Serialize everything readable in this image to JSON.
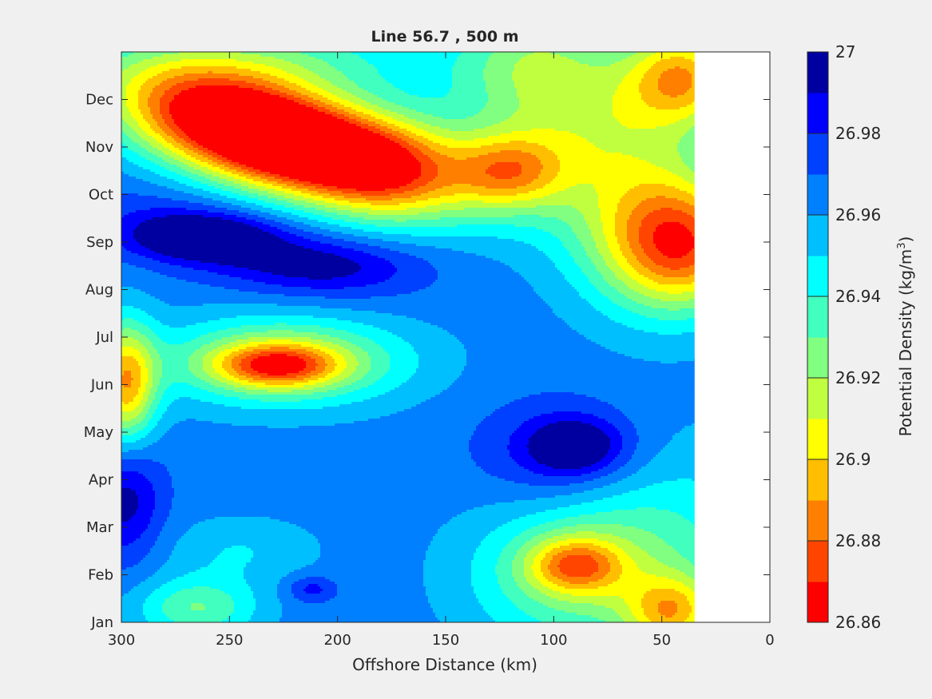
{
  "chart_data": {
    "type": "heatmap",
    "subtype": "filled-contour",
    "title": "Line 56.7 , 500 m",
    "xlabel": "Offshore Distance (km)",
    "xlim": [
      0,
      300
    ],
    "x_reversed": true,
    "x_ticks": [
      300,
      250,
      200,
      150,
      100,
      50,
      0
    ],
    "x_tick_labels": [
      "300",
      "250",
      "200",
      "150",
      "100",
      "50",
      "0"
    ],
    "data_extent_x": [
      35,
      300
    ],
    "ylim": [
      0,
      12
    ],
    "y_ticks": [
      0,
      1,
      2,
      3,
      4,
      5,
      6,
      7,
      8,
      9,
      10,
      11
    ],
    "y_tick_labels": [
      "Jan",
      "Feb",
      "Mar",
      "Apr",
      "May",
      "Jun",
      "Jul",
      "Aug",
      "Sep",
      "Oct",
      "Nov",
      "Dec"
    ],
    "colorbar": {
      "label": "Potential Density (kg/m",
      "label_superscript": "3",
      "label_suffix": ")",
      "range": [
        26.86,
        27
      ],
      "ticks": [
        26.86,
        26.88,
        26.9,
        26.92,
        26.94,
        26.96,
        26.98,
        27
      ],
      "tick_labels": [
        "26.86",
        "26.88",
        "26.9",
        "26.92",
        "26.94",
        "26.96",
        "26.98",
        "27"
      ],
      "levels": [
        26.86,
        26.87,
        26.88,
        26.89,
        26.9,
        26.91,
        26.92,
        26.93,
        26.94,
        26.95,
        26.96,
        26.97,
        26.98,
        26.99,
        27.0
      ],
      "colors": [
        "#ff0000",
        "#ff4500",
        "#ff8000",
        "#ffbf00",
        "#ffff00",
        "#c0ff40",
        "#80ff80",
        "#40ffbf",
        "#00ffff",
        "#00bfff",
        "#0080ff",
        "#0040ff",
        "#0000ff",
        "#0000a0"
      ]
    },
    "background_value": 26.965,
    "features": [
      {
        "x": 212,
        "y": 10.0,
        "value": 26.862,
        "sx": 48,
        "sy": 0.7,
        "rot": -20
      },
      {
        "x": 250,
        "y": 10.5,
        "value": 26.895,
        "sx": 42,
        "sy": 0.75,
        "rot": -25
      },
      {
        "x": 175,
        "y": 9.5,
        "value": 26.935,
        "sx": 25,
        "sy": 0.8,
        "rot": 0
      },
      {
        "x": 230,
        "y": 11.8,
        "value": 26.935,
        "sx": 50,
        "sy": 0.6,
        "rot": 0
      },
      {
        "x": 120,
        "y": 9.5,
        "value": 26.915,
        "sx": 18,
        "sy": 0.55,
        "rot": 0
      },
      {
        "x": 80,
        "y": 10.0,
        "value": 26.935,
        "sx": 40,
        "sy": 1.3,
        "rot": 0
      },
      {
        "x": 90,
        "y": 11.0,
        "value": 26.945,
        "sx": 40,
        "sy": 1.0,
        "rot": 0
      },
      {
        "x": 40,
        "y": 11.5,
        "value": 26.905,
        "sx": 18,
        "sy": 0.7,
        "rot": 0
      },
      {
        "x": 38,
        "y": 7.9,
        "value": 26.895,
        "sx": 22,
        "sy": 0.9,
        "rot": 0
      },
      {
        "x": 60,
        "y": 8.2,
        "value": 26.93,
        "sx": 25,
        "sy": 1.2,
        "rot": 0
      },
      {
        "x": 250,
        "y": 8.0,
        "value": 26.988,
        "sx": 45,
        "sy": 0.55,
        "rot": -18
      },
      {
        "x": 265,
        "y": 8.1,
        "value": 26.998,
        "sx": 22,
        "sy": 0.32,
        "rot": 0
      },
      {
        "x": 200,
        "y": 7.5,
        "value": 26.985,
        "sx": 30,
        "sy": 0.4,
        "rot": 0
      },
      {
        "x": 225,
        "y": 5.5,
        "value": 26.915,
        "sx": 40,
        "sy": 0.65,
        "rot": 0
      },
      {
        "x": 228,
        "y": 5.4,
        "value": 26.905,
        "sx": 20,
        "sy": 0.32,
        "rot": 0
      },
      {
        "x": 298,
        "y": 5.0,
        "value": 26.895,
        "sx": 10,
        "sy": 0.9,
        "rot": 0
      },
      {
        "x": 298,
        "y": 2.6,
        "value": 26.995,
        "sx": 12,
        "sy": 0.9,
        "rot": 0
      },
      {
        "x": 95,
        "y": 3.5,
        "value": 26.988,
        "sx": 28,
        "sy": 0.85,
        "rot": 0
      },
      {
        "x": 90,
        "y": 3.7,
        "value": 26.998,
        "sx": 15,
        "sy": 0.4,
        "rot": 0
      },
      {
        "x": 245,
        "y": 1.5,
        "value": 26.95,
        "sx": 25,
        "sy": 0.5,
        "rot": 0
      },
      {
        "x": 265,
        "y": 0.3,
        "value": 26.93,
        "sx": 20,
        "sy": 0.45,
        "rot": 0
      },
      {
        "x": 90,
        "y": 1.2,
        "value": 26.915,
        "sx": 15,
        "sy": 0.4,
        "rot": 0
      },
      {
        "x": 90,
        "y": 1.0,
        "value": 26.93,
        "sx": 35,
        "sy": 1.1,
        "rot": 0
      },
      {
        "x": 45,
        "y": 0.2,
        "value": 26.91,
        "sx": 15,
        "sy": 0.55,
        "rot": 0
      },
      {
        "x": 50,
        "y": 2.0,
        "value": 26.945,
        "sx": 40,
        "sy": 1.5,
        "rot": 0
      },
      {
        "x": 212,
        "y": 0.7,
        "value": 26.985,
        "sx": 8,
        "sy": 0.2,
        "rot": 0
      },
      {
        "x": 110,
        "y": 12.0,
        "value": 26.94,
        "sx": 25,
        "sy": 0.8,
        "rot": 0
      }
    ]
  }
}
